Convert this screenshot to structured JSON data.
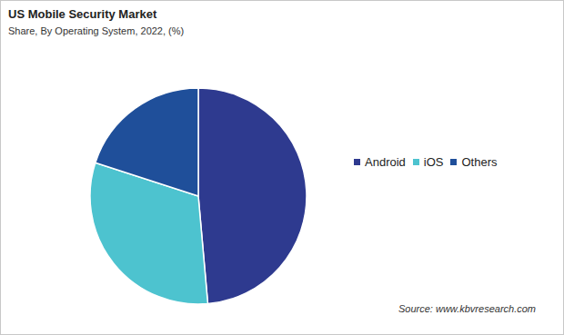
{
  "chart_data": {
    "type": "pie",
    "title": "US Mobile Security Market",
    "subtitle": "Share, By Operating System, 2022, (%)",
    "categories": [
      "Android",
      "iOS",
      "Others"
    ],
    "values": [
      48.6,
      31.4,
      20.0
    ],
    "colors": [
      "#2e3a8f",
      "#4dc3cf",
      "#1f4f9a"
    ],
    "legend": "right",
    "source": "Source: www.kbvresearch.com"
  }
}
